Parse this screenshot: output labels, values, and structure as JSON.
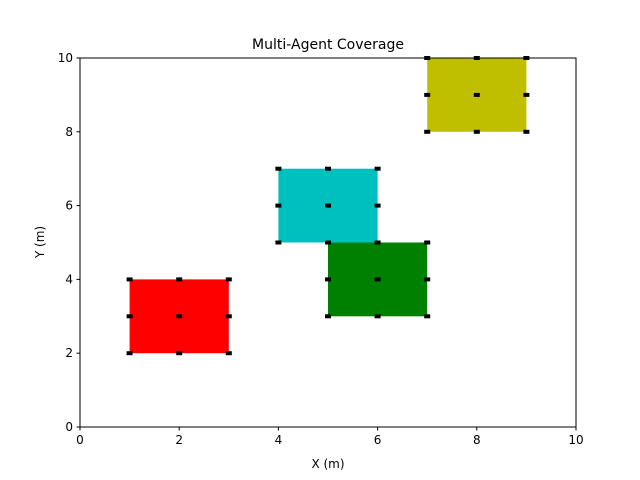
{
  "chart_data": {
    "type": "scatter",
    "title": "Multi-Agent Coverage",
    "xlabel": "X (m)",
    "ylabel": "Y (m)",
    "xlim": [
      0,
      10
    ],
    "ylim": [
      0,
      10
    ],
    "xticks": [
      0,
      2,
      4,
      6,
      8,
      10
    ],
    "yticks": [
      0,
      2,
      4,
      6,
      8,
      10
    ],
    "grid": false,
    "regions": [
      {
        "color": "#ff0000",
        "x": [
          1,
          3
        ],
        "y": [
          2,
          4
        ]
      },
      {
        "color": "#00bfbf",
        "x": [
          4,
          6
        ],
        "y": [
          5,
          7
        ]
      },
      {
        "color": "#008000",
        "x": [
          5,
          7
        ],
        "y": [
          3,
          5
        ]
      },
      {
        "color": "#bfbf00",
        "x": [
          7,
          9
        ],
        "y": [
          8,
          10
        ]
      }
    ],
    "points": [
      {
        "x": 1,
        "y": 2
      },
      {
        "x": 1,
        "y": 3
      },
      {
        "x": 1,
        "y": 4
      },
      {
        "x": 2,
        "y": 2
      },
      {
        "x": 2,
        "y": 3
      },
      {
        "x": 2,
        "y": 4
      },
      {
        "x": 3,
        "y": 2
      },
      {
        "x": 3,
        "y": 3
      },
      {
        "x": 3,
        "y": 4
      },
      {
        "x": 4,
        "y": 5
      },
      {
        "x": 4,
        "y": 6
      },
      {
        "x": 4,
        "y": 7
      },
      {
        "x": 5,
        "y": 5
      },
      {
        "x": 5,
        "y": 6
      },
      {
        "x": 5,
        "y": 7
      },
      {
        "x": 6,
        "y": 5
      },
      {
        "x": 6,
        "y": 6
      },
      {
        "x": 6,
        "y": 7
      },
      {
        "x": 5,
        "y": 3
      },
      {
        "x": 5,
        "y": 4
      },
      {
        "x": 6,
        "y": 3
      },
      {
        "x": 6,
        "y": 4
      },
      {
        "x": 7,
        "y": 3
      },
      {
        "x": 7,
        "y": 4
      },
      {
        "x": 7,
        "y": 5
      },
      {
        "x": 7,
        "y": 8
      },
      {
        "x": 7,
        "y": 9
      },
      {
        "x": 7,
        "y": 10
      },
      {
        "x": 8,
        "y": 8
      },
      {
        "x": 8,
        "y": 9
      },
      {
        "x": 8,
        "y": 10
      },
      {
        "x": 9,
        "y": 8
      },
      {
        "x": 9,
        "y": 9
      },
      {
        "x": 9,
        "y": 10
      }
    ]
  }
}
